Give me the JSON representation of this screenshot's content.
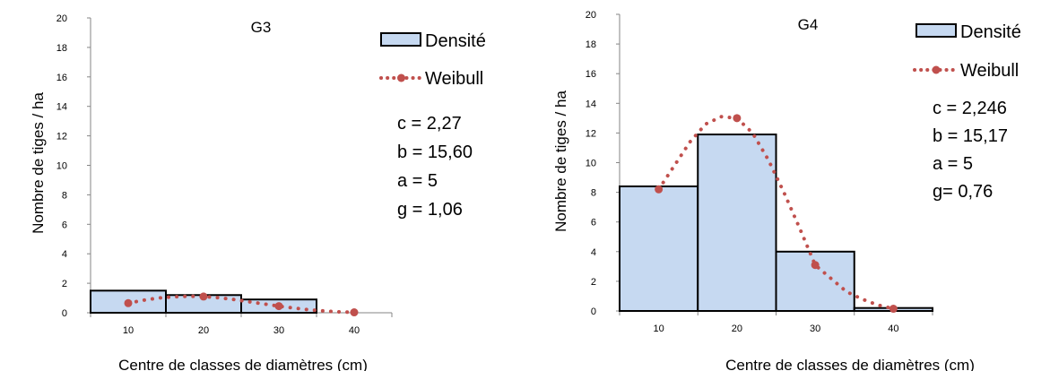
{
  "chart_data": [
    {
      "type": "bar",
      "title": "G3",
      "xlabel": "Centre de classes de diamètres (cm)",
      "ylabel": "Nombre de tiges / ha",
      "ylim": [
        0,
        20
      ],
      "yticks": [
        0,
        2,
        4,
        6,
        8,
        10,
        12,
        14,
        16,
        18,
        20
      ],
      "xlim": [
        5,
        45
      ],
      "xticks": [
        10,
        20,
        30,
        40
      ],
      "grid": false,
      "legend_position": "top-right",
      "bar_color": "#c6d9f1",
      "series": [
        {
          "name": "Densité",
          "type": "bar",
          "bins": [
            [
              5,
              15
            ],
            [
              15,
              25
            ],
            [
              25,
              35
            ]
          ],
          "values": [
            1.5,
            1.2,
            0.9
          ]
        },
        {
          "name": "Weibull",
          "type": "line",
          "color": "#c0504d",
          "x": [
            10,
            12,
            14,
            16,
            18,
            20,
            22,
            24,
            26,
            28,
            30,
            32,
            34,
            36,
            38,
            40
          ],
          "y": [
            0.65,
            0.85,
            1.0,
            1.08,
            1.12,
            1.1,
            1.02,
            0.9,
            0.75,
            0.6,
            0.45,
            0.32,
            0.2,
            0.12,
            0.06,
            0.03
          ],
          "markers_at": [
            10,
            20,
            30,
            40
          ]
        }
      ],
      "annotations": [
        "c = 2,27",
        "b = 15,60",
        "a = 5",
        "g = 1,06"
      ]
    },
    {
      "type": "bar",
      "title": "G4",
      "xlabel": "Centre de classes de diamètres (cm)",
      "ylabel": "Nombre de tiges / ha",
      "ylim": [
        0,
        20
      ],
      "yticks": [
        0,
        2,
        4,
        6,
        8,
        10,
        12,
        14,
        16,
        18,
        20
      ],
      "xlim": [
        5,
        45
      ],
      "xticks": [
        10,
        20,
        30,
        40
      ],
      "grid": false,
      "legend_position": "top-right",
      "bar_color": "#c6d9f1",
      "series": [
        {
          "name": "Densité",
          "type": "bar",
          "bins": [
            [
              5,
              15
            ],
            [
              15,
              25
            ],
            [
              25,
              35
            ],
            [
              35,
              45
            ]
          ],
          "values": [
            8.4,
            11.9,
            4.0,
            0.2
          ]
        },
        {
          "name": "Weibull",
          "type": "line",
          "color": "#c0504d",
          "x": [
            10,
            12,
            14,
            16,
            18,
            20,
            22,
            24,
            26,
            28,
            30,
            32,
            34,
            36,
            38,
            40
          ],
          "y": [
            8.2,
            9.8,
            11.4,
            12.6,
            13.1,
            13.0,
            12.0,
            10.2,
            8.0,
            5.6,
            3.1,
            2.2,
            1.3,
            0.8,
            0.4,
            0.15
          ],
          "markers_at": [
            10,
            20,
            30,
            40
          ]
        }
      ],
      "annotations": [
        "c = 2,246",
        "b = 15,17",
        "a = 5",
        "g= 0,76"
      ]
    }
  ]
}
